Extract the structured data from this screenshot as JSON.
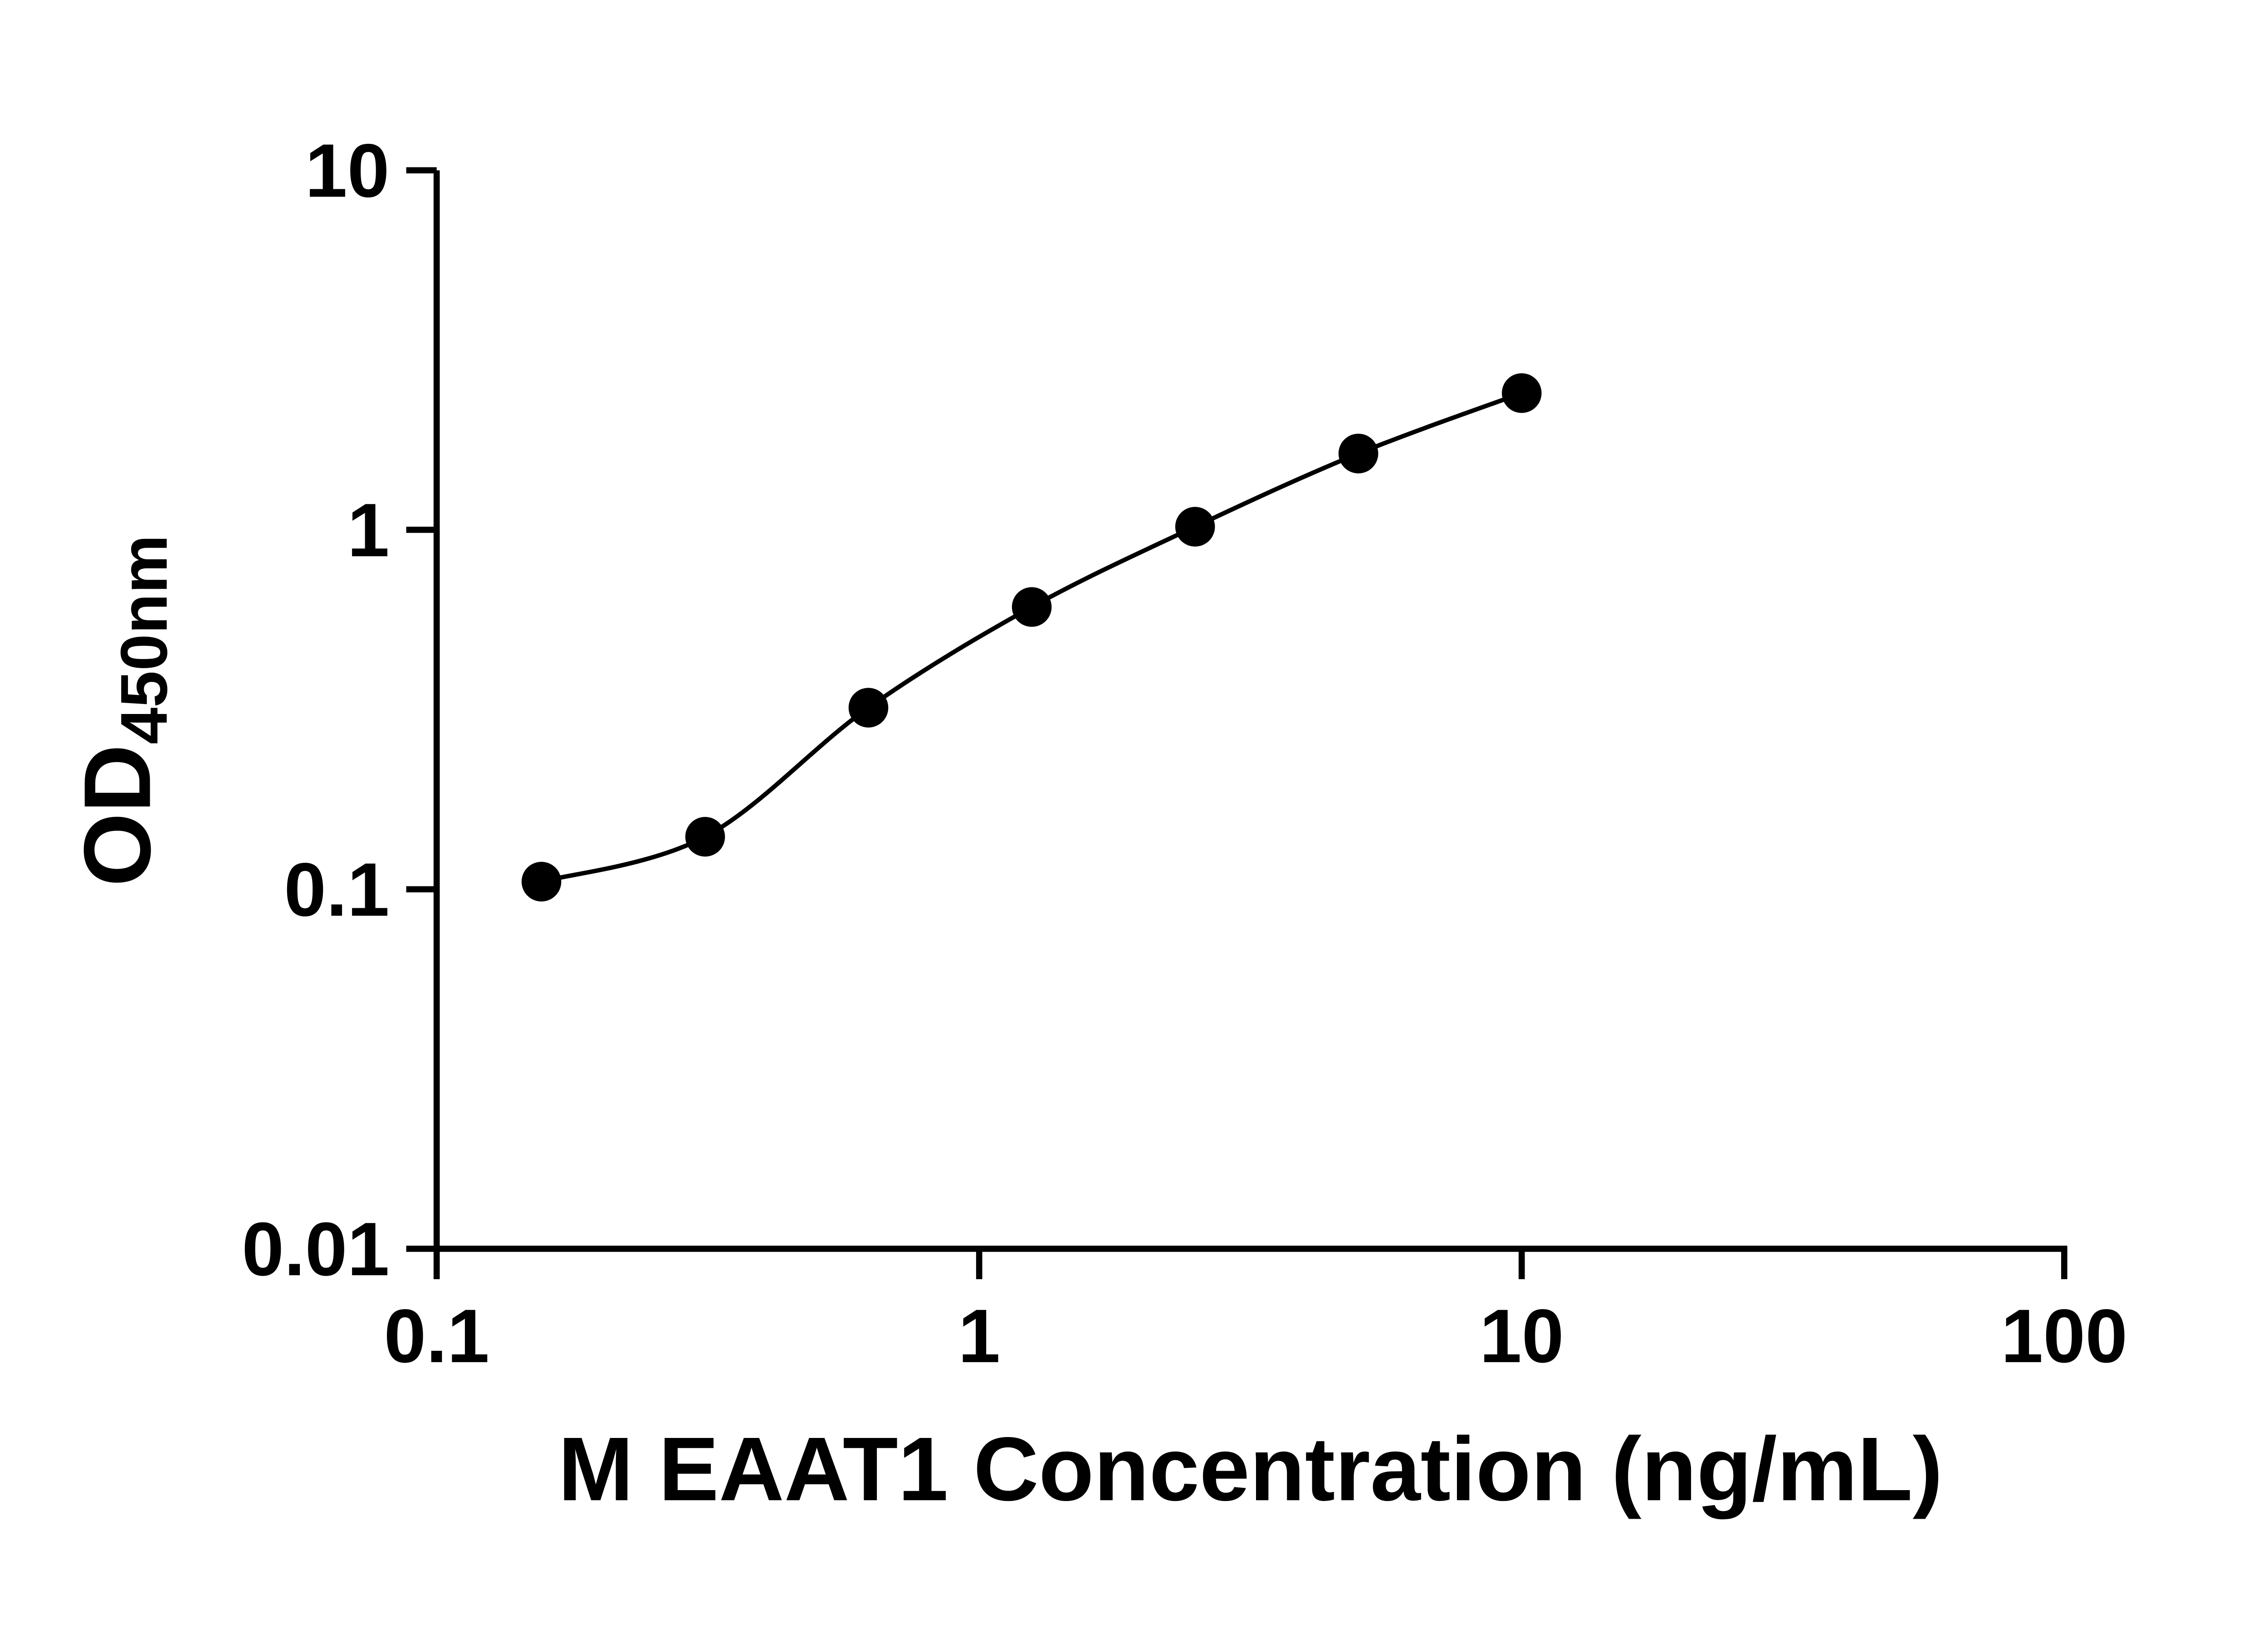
{
  "chart_data": {
    "type": "scatter",
    "fit_curve": true,
    "x": [
      0.156,
      0.3125,
      0.625,
      1.25,
      2.5,
      5,
      10
    ],
    "y": [
      0.105,
      0.14,
      0.32,
      0.61,
      1.02,
      1.63,
      2.4
    ],
    "xlabel": "M EAAT1 Concentration (ng/mL)",
    "ylabel_main": "OD",
    "ylabel_sub": "450nm",
    "x_scale": "log",
    "y_scale": "log",
    "xlim": [
      0.1,
      100
    ],
    "ylim": [
      0.01,
      10
    ],
    "x_ticks": [
      "0.1",
      "1",
      "10",
      "100"
    ],
    "y_ticks": [
      "10",
      "1",
      "0.1",
      "0.01"
    ],
    "grid": "off",
    "legend": "none",
    "marker_color": "#000000",
    "line_color": "#000000",
    "axis_color": "#000000",
    "background_color": "#ffffff"
  }
}
